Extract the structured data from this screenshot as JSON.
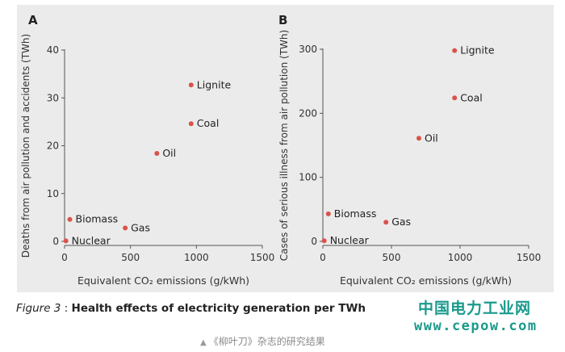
{
  "chart_data": [
    {
      "panel": "A",
      "type": "scatter",
      "xlabel": "Equivalent CO₂ emissions (g/kWh)",
      "ylabel": "Deaths from air pollution and accidents (TWh)",
      "xlim": [
        0,
        1500
      ],
      "ylim": [
        0,
        40
      ],
      "xticks": [
        0,
        500,
        1000,
        1500
      ],
      "yticks": [
        0,
        10,
        20,
        30,
        40
      ],
      "grid": false,
      "points": [
        {
          "label": "Lignite",
          "x": 960,
          "y": 32.7
        },
        {
          "label": "Coal",
          "x": 960,
          "y": 24.6
        },
        {
          "label": "Oil",
          "x": 700,
          "y": 18.4
        },
        {
          "label": "Biomass",
          "x": 40,
          "y": 4.6
        },
        {
          "label": "Gas",
          "x": 460,
          "y": 2.8
        },
        {
          "label": "Nuclear",
          "x": 10,
          "y": 0.1
        }
      ]
    },
    {
      "panel": "B",
      "type": "scatter",
      "xlabel": "Equivalent CO₂ emissions (g/kWh)",
      "ylabel": "Cases of serious illness from air pollution (TWh)",
      "xlim": [
        0,
        1500
      ],
      "ylim": [
        0,
        300
      ],
      "xticks": [
        0,
        500,
        1000,
        1500
      ],
      "yticks": [
        0,
        100,
        200,
        300
      ],
      "grid": false,
      "points": [
        {
          "label": "Lignite",
          "x": 960,
          "y": 298
        },
        {
          "label": "Coal",
          "x": 960,
          "y": 224
        },
        {
          "label": "Oil",
          "x": 700,
          "y": 161
        },
        {
          "label": "Biomass",
          "x": 40,
          "y": 43
        },
        {
          "label": "Gas",
          "x": 460,
          "y": 30
        },
        {
          "label": "Nuclear",
          "x": 10,
          "y": 1
        }
      ]
    }
  ],
  "caption": {
    "figure_label": "Figure 3",
    "separator": " : ",
    "title": "Health effects of electricity generation per TWh"
  },
  "watermark": {
    "name": "中国电力工业网",
    "url": "www.cepow.com"
  },
  "source_note": {
    "marker": "▲",
    "text": "《柳叶刀》杂志的研究结果"
  },
  "colors": {
    "point": "#d9534a",
    "panel_background": "#ebebec",
    "axis": "#555555",
    "watermark": "#1a9a8c"
  }
}
